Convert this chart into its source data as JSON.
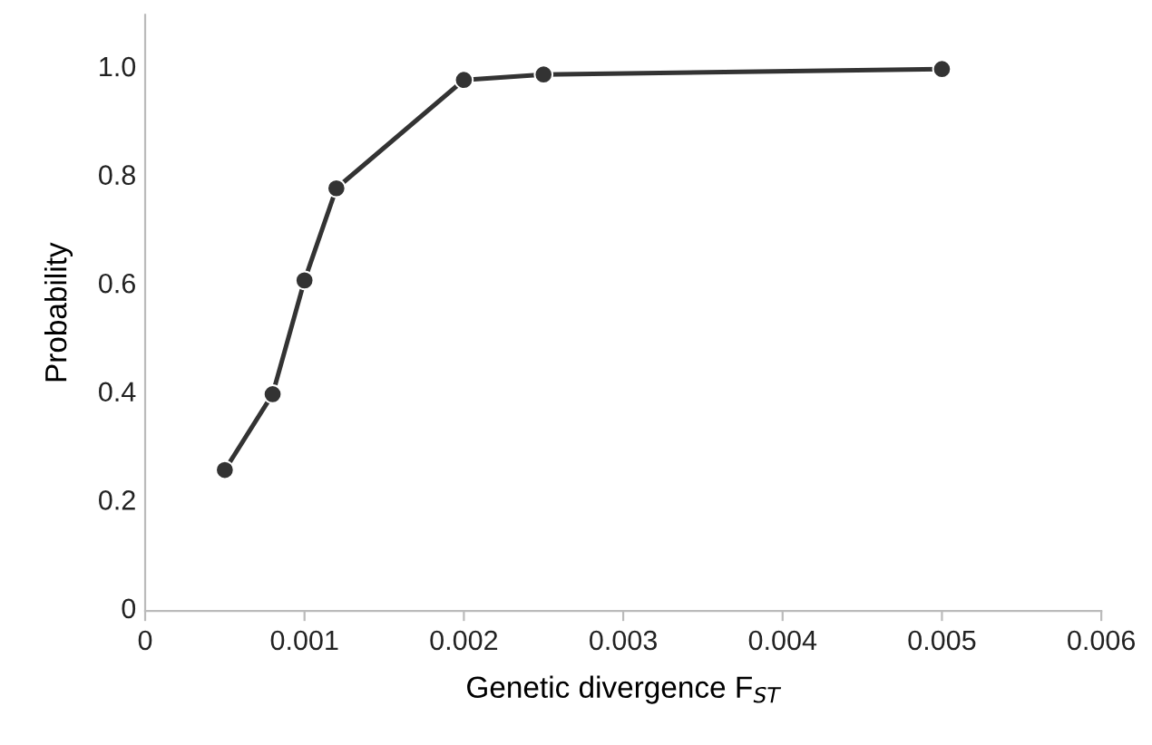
{
  "chart_data": {
    "type": "line",
    "xlabel": "Genetic divergence F$_{ST}$",
    "ylabel": "Probability",
    "x": [
      0.0005,
      0.0008,
      0.001,
      0.0012,
      0.002,
      0.0025,
      0.005
    ],
    "series": [
      {
        "color": "#333333",
        "values": [
          0.26,
          0.4,
          0.61,
          0.78,
          0.98,
          0.99,
          1.0
        ]
      }
    ],
    "marker": "circle",
    "line_style": "solid",
    "grid": false,
    "legend": false,
    "xlim": [
      0,
      0.006
    ],
    "xticks": [
      0,
      {
        "value": 0.001,
        "label": "0.001"
      },
      {
        "value": 0.002,
        "label": "0.002"
      },
      {
        "value": 0.003,
        "label": "0.003"
      },
      {
        "value": 0.004,
        "label": "0.004"
      },
      {
        "value": 0.005,
        "label": "0.005"
      },
      {
        "value": 0.006,
        "label": "0.006"
      }
    ],
    "ylim": [
      0,
      1.1
    ],
    "yticks": [
      0,
      {
        "value": 0.2,
        "label": "0.2"
      },
      {
        "value": 0.4,
        "label": "0.4"
      },
      {
        "value": 0.6,
        "label": "0.6"
      },
      {
        "value": 0.8,
        "label": "0.8"
      },
      {
        "value": 1.0,
        "label": "1.0"
      }
    ]
  }
}
